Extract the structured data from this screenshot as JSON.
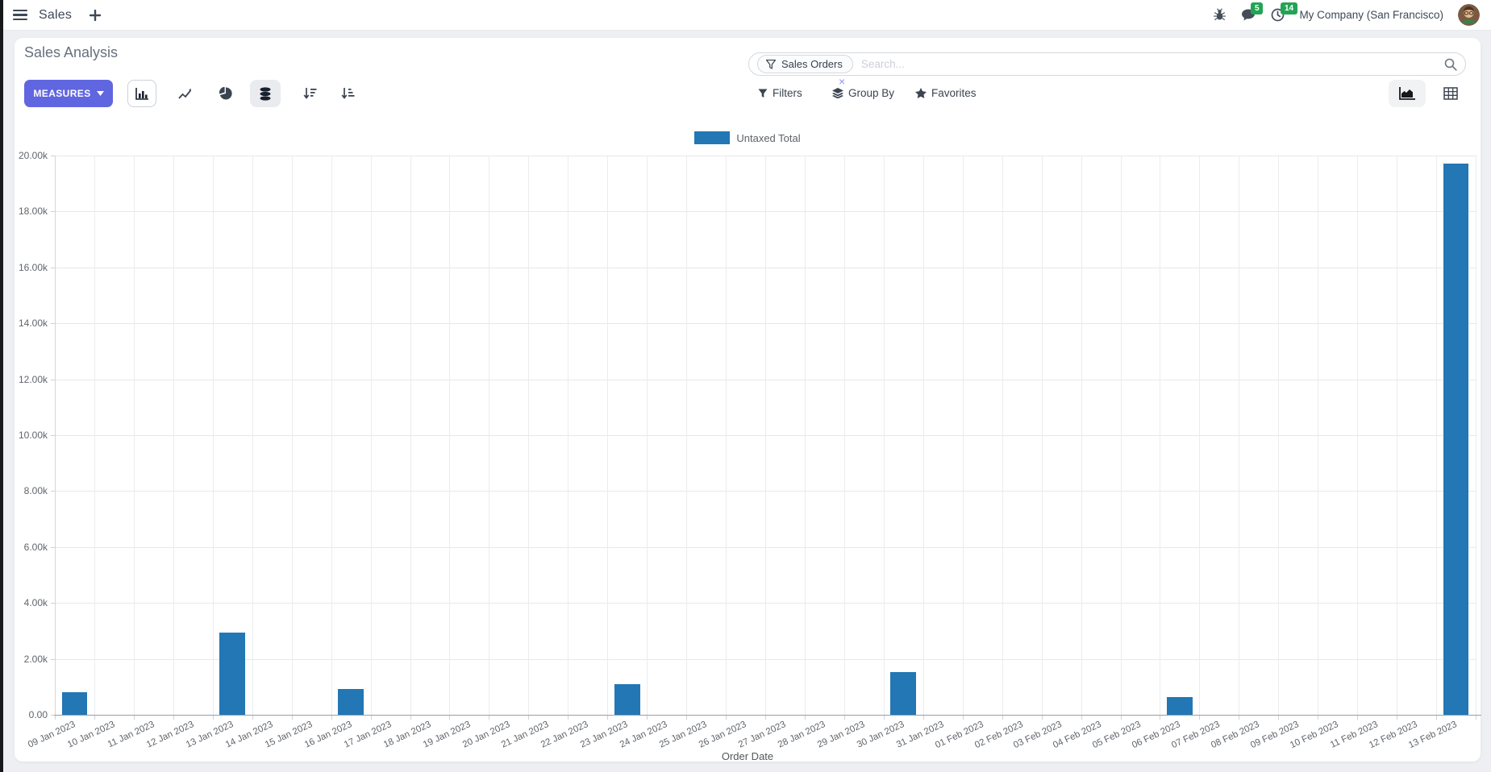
{
  "navbar": {
    "app_label": "Sales",
    "company": "My Company (San Francisco)",
    "message_badge": "5",
    "activity_badge": "14"
  },
  "control_panel": {
    "title": "Sales Analysis",
    "measures_button": "MEASURES",
    "filters_label": "Filters",
    "group_by_label": "Group By",
    "favorites_label": "Favorites",
    "search": {
      "facet_label": "Sales Orders",
      "placeholder": "Search...",
      "remove_symbol": "×"
    },
    "icons": {
      "left_group": [
        "bar-chart-icon",
        "line-chart-icon",
        "pie-chart-icon",
        "stacked-icon",
        "sort-descending-icon",
        "sort-ascending-icon"
      ],
      "view_switchers": [
        "graph-view-icon",
        "pivot-view-icon"
      ]
    }
  },
  "colors": {
    "accent": "#6066e0",
    "bar": "#2277b4",
    "badge": "#23a455"
  },
  "chart_data": {
    "type": "bar",
    "title": "",
    "legend": [
      "Untaxed Total"
    ],
    "legend_position": "top-center",
    "grid": true,
    "xlabel": "Order Date",
    "ylabel": "",
    "ylim": [
      0,
      20000
    ],
    "y_ticks": [
      {
        "label": "20.00k",
        "value": 20000
      },
      {
        "label": "18.00k",
        "value": 18000
      },
      {
        "label": "16.00k",
        "value": 16000
      },
      {
        "label": "14.00k",
        "value": 14000
      },
      {
        "label": "12.00k",
        "value": 12000
      },
      {
        "label": "10.00k",
        "value": 10000
      },
      {
        "label": "8.00k",
        "value": 8000
      },
      {
        "label": "6.00k",
        "value": 6000
      },
      {
        "label": "4.00k",
        "value": 4000
      },
      {
        "label": "2.00k",
        "value": 2000
      },
      {
        "label": "0.00",
        "value": 0
      }
    ],
    "categories": [
      "09 Jan 2023",
      "10 Jan 2023",
      "11 Jan 2023",
      "12 Jan 2023",
      "13 Jan 2023",
      "14 Jan 2023",
      "15 Jan 2023",
      "16 Jan 2023",
      "17 Jan 2023",
      "18 Jan 2023",
      "19 Jan 2023",
      "20 Jan 2023",
      "21 Jan 2023",
      "22 Jan 2023",
      "23 Jan 2023",
      "24 Jan 2023",
      "25 Jan 2023",
      "26 Jan 2023",
      "27 Jan 2023",
      "28 Jan 2023",
      "29 Jan 2023",
      "30 Jan 2023",
      "31 Jan 2023",
      "01 Feb 2023",
      "02 Feb 2023",
      "03 Feb 2023",
      "04 Feb 2023",
      "05 Feb 2023",
      "06 Feb 2023",
      "07 Feb 2023",
      "08 Feb 2023",
      "09 Feb 2023",
      "10 Feb 2023",
      "11 Feb 2023",
      "12 Feb 2023",
      "13 Feb 2023"
    ],
    "series": [
      {
        "name": "Untaxed Total",
        "values": [
          800,
          0,
          0,
          0,
          2950,
          0,
          0,
          930,
          0,
          0,
          0,
          0,
          0,
          0,
          1100,
          0,
          0,
          0,
          0,
          0,
          0,
          1530,
          0,
          0,
          0,
          0,
          0,
          0,
          640,
          0,
          0,
          0,
          0,
          0,
          0,
          19700
        ]
      }
    ]
  }
}
